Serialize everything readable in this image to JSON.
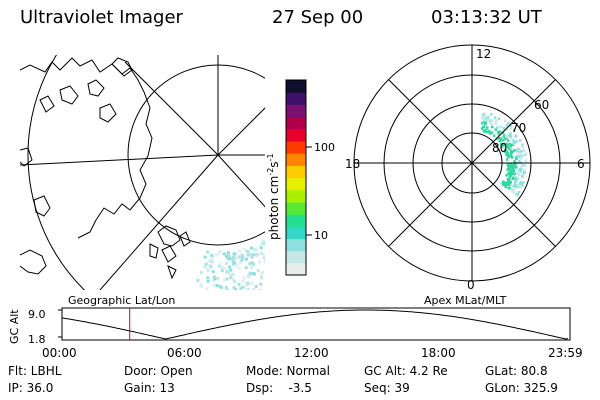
{
  "header": {
    "title": "Ultraviolet Imager",
    "date": "27 Sep 00",
    "time": "03:13:32 UT"
  },
  "geo_panel": {
    "label": "Geographic Lat/Lon"
  },
  "apex_panel": {
    "label": "Apex MLat/MLT",
    "mlt_labels": [
      "12",
      "18",
      "6",
      "0"
    ],
    "lat_labels": [
      "60",
      "70",
      "80"
    ]
  },
  "colorbar": {
    "label": "photon cm",
    "exp1": "-2",
    "mid": "s",
    "exp2": "-1",
    "ticks": [
      "100",
      "10"
    ],
    "colors": [
      "#e8eeee",
      "#c6e8e6",
      "#8ee0e0",
      "#35d6c8",
      "#22e090",
      "#58e838",
      "#a8f000",
      "#e6f000",
      "#ffcc00",
      "#ff8400",
      "#ff3c00",
      "#e6002a",
      "#b0004a",
      "#7a1070",
      "#40106a",
      "#10102c"
    ]
  },
  "timeline": {
    "ylabel": "GC Alt",
    "yticks": [
      "9.0",
      "1.8"
    ],
    "xticks": [
      "00:00",
      "06:00",
      "12:00",
      "18:00",
      "23:59"
    ],
    "marker_hours": 3.2
  },
  "footer": {
    "row1": {
      "flt": "Flt: LBHL",
      "door": "Door: Open",
      "mode": "Mode: Normal",
      "gcalt": "GC Alt: 4.2 Re",
      "glat": "GLat:  80.8"
    },
    "row2": {
      "ip": "IP: 36.0",
      "gain": "Gain: 13",
      "dsp": "Dsp:    -3.5",
      "seq": "Seq: 39",
      "glon": "GLon: 325.9"
    }
  }
}
